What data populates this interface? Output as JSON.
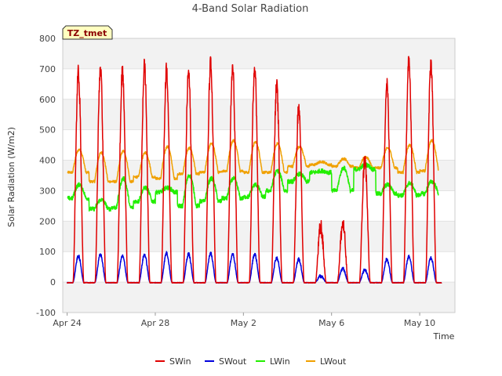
{
  "chart_data": {
    "type": "line",
    "title": "4-Band Solar Radiation",
    "xlabel": "Time",
    "ylabel": "Solar Radiation (W/m2)",
    "tag": "TZ_tmet",
    "x_range_days": [
      -0.2,
      17.6
    ],
    "ylim": [
      -100,
      800
    ],
    "yticks": [
      -100,
      0,
      100,
      200,
      300,
      400,
      500,
      600,
      700,
      800
    ],
    "xticks": [
      {
        "day": 0,
        "label": "Apr 24"
      },
      {
        "day": 4,
        "label": "Apr 28"
      },
      {
        "day": 8,
        "label": "May 2"
      },
      {
        "day": 12,
        "label": "May 6"
      },
      {
        "day": 16,
        "label": "May 10"
      }
    ],
    "grid": true,
    "legend_position": "bottom",
    "series": [
      {
        "name": "SWin",
        "color": "#e00000",
        "daily_peaks": [
          690,
          705,
          690,
          710,
          700,
          690,
          715,
          700,
          710,
          640,
          570,
          180,
          190,
          400,
          650,
          740,
          720
        ],
        "drops_to": 0
      },
      {
        "name": "SWout",
        "color": "#0000dd",
        "daily_peaks": [
          85,
          90,
          85,
          90,
          95,
          92,
          95,
          92,
          92,
          80,
          75,
          20,
          45,
          40,
          75,
          85,
          80
        ],
        "drops_to": 0
      },
      {
        "name": "LWin",
        "color": "#22ee00",
        "daily_mins": [
          275,
          240,
          245,
          265,
          295,
          250,
          265,
          275,
          280,
          300,
          330,
          360,
          300,
          370,
          290,
          285,
          290
        ],
        "daily_maxs": [
          320,
          270,
          340,
          310,
          310,
          350,
          340,
          340,
          320,
          365,
          355,
          365,
          375,
          385,
          320,
          325,
          330
        ]
      },
      {
        "name": "LWout",
        "color": "#f0a000",
        "daily_mins": [
          360,
          330,
          330,
          345,
          340,
          355,
          360,
          365,
          360,
          360,
          380,
          385,
          380,
          375,
          375,
          360,
          365
        ],
        "daily_maxs": [
          435,
          425,
          430,
          425,
          445,
          440,
          455,
          465,
          460,
          455,
          445,
          395,
          405,
          410,
          440,
          450,
          465
        ]
      }
    ]
  }
}
